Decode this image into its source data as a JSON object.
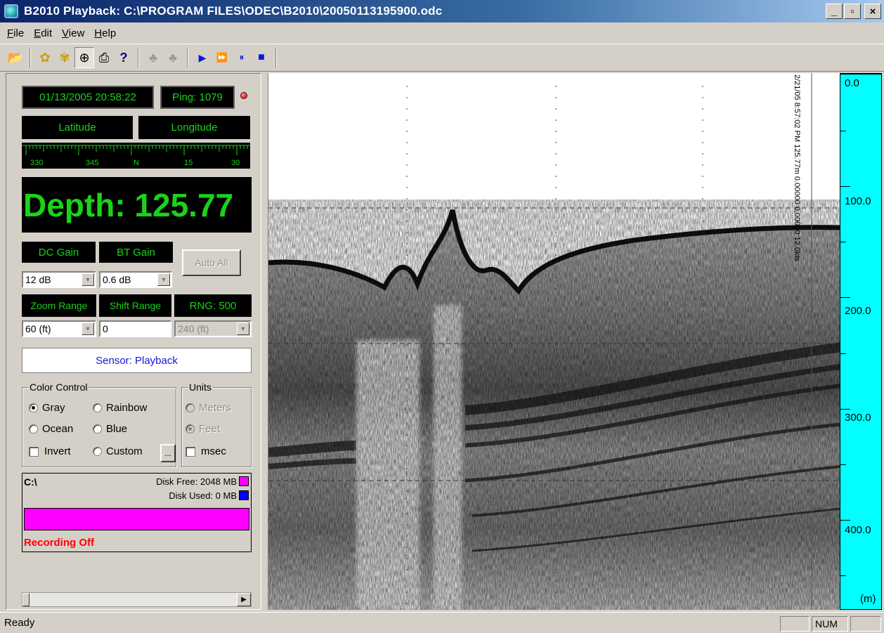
{
  "window": {
    "title": "B2010 Playback: C:\\PROGRAM FILES\\ODEC\\B2010\\20050113195900.odc",
    "controls": {
      "minimize": "_",
      "maximize": "▫",
      "close": "×"
    }
  },
  "menu": [
    {
      "label": "File",
      "u": "F",
      "rest": "ile"
    },
    {
      "label": "Edit",
      "u": "E",
      "rest": "dit"
    },
    {
      "label": "View",
      "u": "V",
      "rest": "iew"
    },
    {
      "label": "Help",
      "u": "H",
      "rest": "elp"
    }
  ],
  "toolbar": {
    "icons": [
      "open-folder-icon",
      "wizard-icon",
      "wizard-alt-icon",
      "zoom-in-icon",
      "print-icon",
      "help-icon",
      "tree-icon",
      "tree-disabled-icon",
      "play-icon",
      "fast-forward-icon",
      "pause-icon",
      "stop-icon"
    ],
    "glyphs": {
      "open": "📂",
      "wiz1": "✿",
      "wiz2": "✾",
      "zoom": "⊕",
      "print": "⎙",
      "help": "?",
      "tree1": "♣",
      "tree2": "♣",
      "play": "▶",
      "ff": "⏩",
      "pause": "⏸",
      "stop": "■"
    }
  },
  "readout": {
    "datetime": "01/13/2005 20:58:22",
    "ping": "Ping: 1079",
    "latitude": "Latitude",
    "longitude": "Longitude",
    "depth": "Depth: 125.77"
  },
  "compass": {
    "labels": [
      "330",
      "345",
      "N",
      "15",
      "30"
    ]
  },
  "gain": {
    "dc_label": "DC Gain",
    "bt_label": "BT Gain",
    "auto_all": "Auto All",
    "dc_value": "12 dB",
    "bt_value": "0.6 dB"
  },
  "range": {
    "zoom_label": "Zoom Range",
    "shift_label": "Shift Range",
    "rng_label": "RNG: 500",
    "zoom_value": "60 (ft)",
    "shift_value": "0",
    "rng_value": "240 (ft)"
  },
  "sensor": "Sensor: Playback",
  "color_control": {
    "title": "Color Control",
    "gray": "Gray",
    "rainbow": "Rainbow",
    "ocean": "Ocean",
    "blue": "Blue",
    "invert": "Invert",
    "custom": "Custom",
    "more": "...",
    "selected": "gray"
  },
  "units": {
    "title": "Units",
    "meters": "Meters",
    "feet": "Feet",
    "msec": "msec",
    "selected": "feet"
  },
  "disk": {
    "path": "C:\\",
    "free": "Disk Free: 2048 MB",
    "used": "Disk Used: 0 MB",
    "free_color": "#ff00ff",
    "used_color": "#0000ff",
    "used_fraction": 0,
    "recording": "Recording Off"
  },
  "echogram": {
    "annotation": "2/21/05 8:57:02 PM 125.77m 0.00000 0.00000 12.0kts"
  },
  "depth_scale": {
    "labels": [
      "0.0",
      "100.0",
      "200.0",
      "300.0",
      "400.0"
    ],
    "unit": "(m)",
    "color": "#00ffff"
  },
  "status": {
    "text": "Ready",
    "num": "NUM"
  }
}
